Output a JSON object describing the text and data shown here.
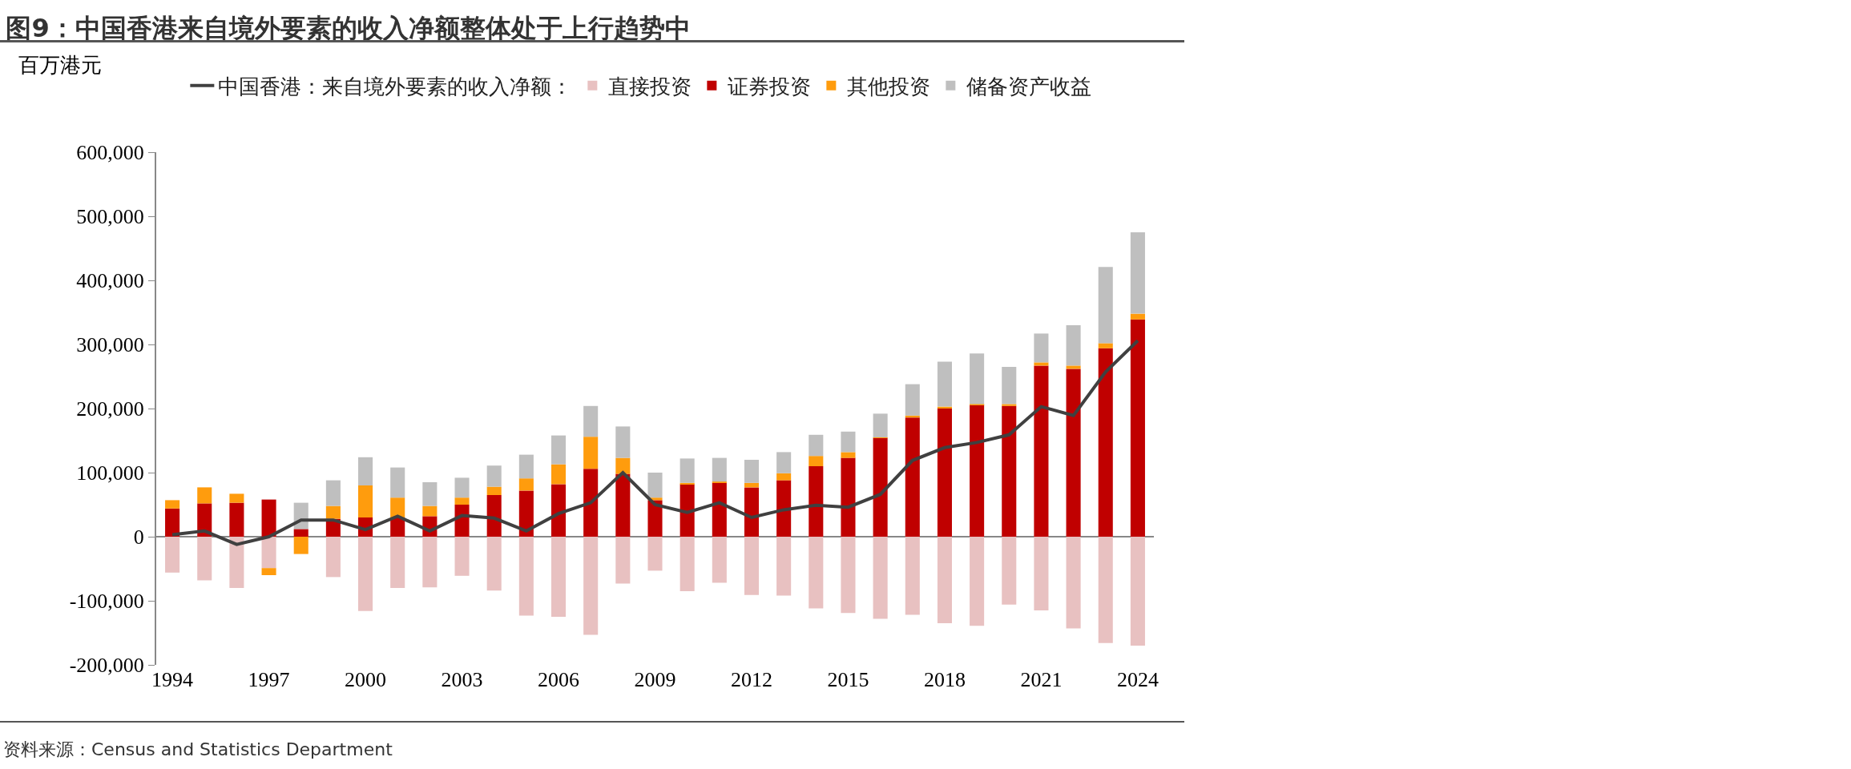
{
  "chart_data": {
    "type": "bar",
    "title": "图9：中国香港来自境外要素的收入净额整体处于上行趋势中",
    "ylabel": "百万港元",
    "annotations": [
      "资料来源：Census and Statistics Department"
    ],
    "categories": [
      "1994",
      null,
      null,
      "1997",
      null,
      null,
      "2000",
      null,
      null,
      "2003",
      null,
      null,
      "2006",
      null,
      null,
      "2009",
      null,
      null,
      "2012",
      null,
      null,
      "2015",
      null,
      null,
      "2018",
      null,
      null,
      "2021",
      null,
      null,
      "2024"
    ],
    "stacked": true,
    "legend": "top",
    "ylim": [
      -200000,
      600000
    ],
    "yticks": [
      {
        "value": -200000,
        "label": "-200,000"
      },
      {
        "value": -100000,
        "label": "-100,000"
      },
      {
        "value": 0,
        "label": "0"
      },
      {
        "value": 100000,
        "label": "100,000"
      },
      {
        "value": 200000,
        "label": "200,000"
      },
      {
        "value": 300000,
        "label": "300,000"
      },
      {
        "value": 400000,
        "label": "400,000"
      },
      {
        "value": 500000,
        "label": "500,000"
      },
      {
        "value": 600000,
        "label": "600,000"
      }
    ],
    "series": [
      {
        "name": "直接投资",
        "color": "#e8c1c1",
        "values": [
          -56000,
          -68000,
          -80000,
          -49000,
          null,
          -63000,
          -116000,
          -80000,
          -79000,
          -61000,
          -84000,
          -123000,
          -125000,
          -153000,
          -73000,
          -53000,
          -85000,
          -72000,
          -91000,
          -92000,
          -112000,
          -119000,
          -128000,
          -122000,
          -135000,
          -139000,
          -106000,
          -115000,
          -143000,
          -166000,
          -170000
        ]
      },
      {
        "name": "证券投资",
        "color": "#c00000",
        "values": [
          44000,
          52000,
          53000,
          58000,
          12000,
          28000,
          30000,
          30000,
          32000,
          50000,
          65000,
          72000,
          82000,
          106000,
          98000,
          57000,
          82000,
          84000,
          77000,
          88000,
          110000,
          123000,
          154000,
          186000,
          201000,
          206000,
          204000,
          267000,
          262000,
          294000,
          339000
        ]
      },
      {
        "name": "其他投资",
        "color": "#ff9c0d",
        "values": [
          13000,
          25000,
          14000,
          -11000,
          -27000,
          20000,
          50000,
          31000,
          16000,
          11000,
          13000,
          19000,
          31000,
          50000,
          25000,
          4000,
          2000,
          2000,
          7000,
          11000,
          16000,
          9000,
          1000,
          3000,
          2000,
          1000,
          3000,
          5000,
          5000,
          8000,
          9000
        ]
      },
      {
        "name": "储备资产收益",
        "color": "#bfbfbf",
        "values": [
          null,
          null,
          null,
          null,
          41000,
          40000,
          44000,
          47000,
          37000,
          31000,
          33000,
          37000,
          45000,
          48000,
          49000,
          39000,
          38000,
          37000,
          36000,
          33000,
          33000,
          32000,
          37000,
          49000,
          70000,
          79000,
          58000,
          45000,
          63000,
          119000,
          127000
        ]
      },
      {
        "name": "中国香港：来自境外要素的收入净额：",
        "type": "line",
        "color": "#404040",
        "values": [
          3000,
          9000,
          -12000,
          0,
          26000,
          26000,
          11000,
          32000,
          9000,
          33000,
          29000,
          9000,
          36000,
          53000,
          100000,
          50000,
          38000,
          53000,
          30000,
          42000,
          49000,
          46000,
          66000,
          119000,
          139000,
          147000,
          159000,
          203000,
          189000,
          257000,
          306000
        ]
      }
    ]
  }
}
